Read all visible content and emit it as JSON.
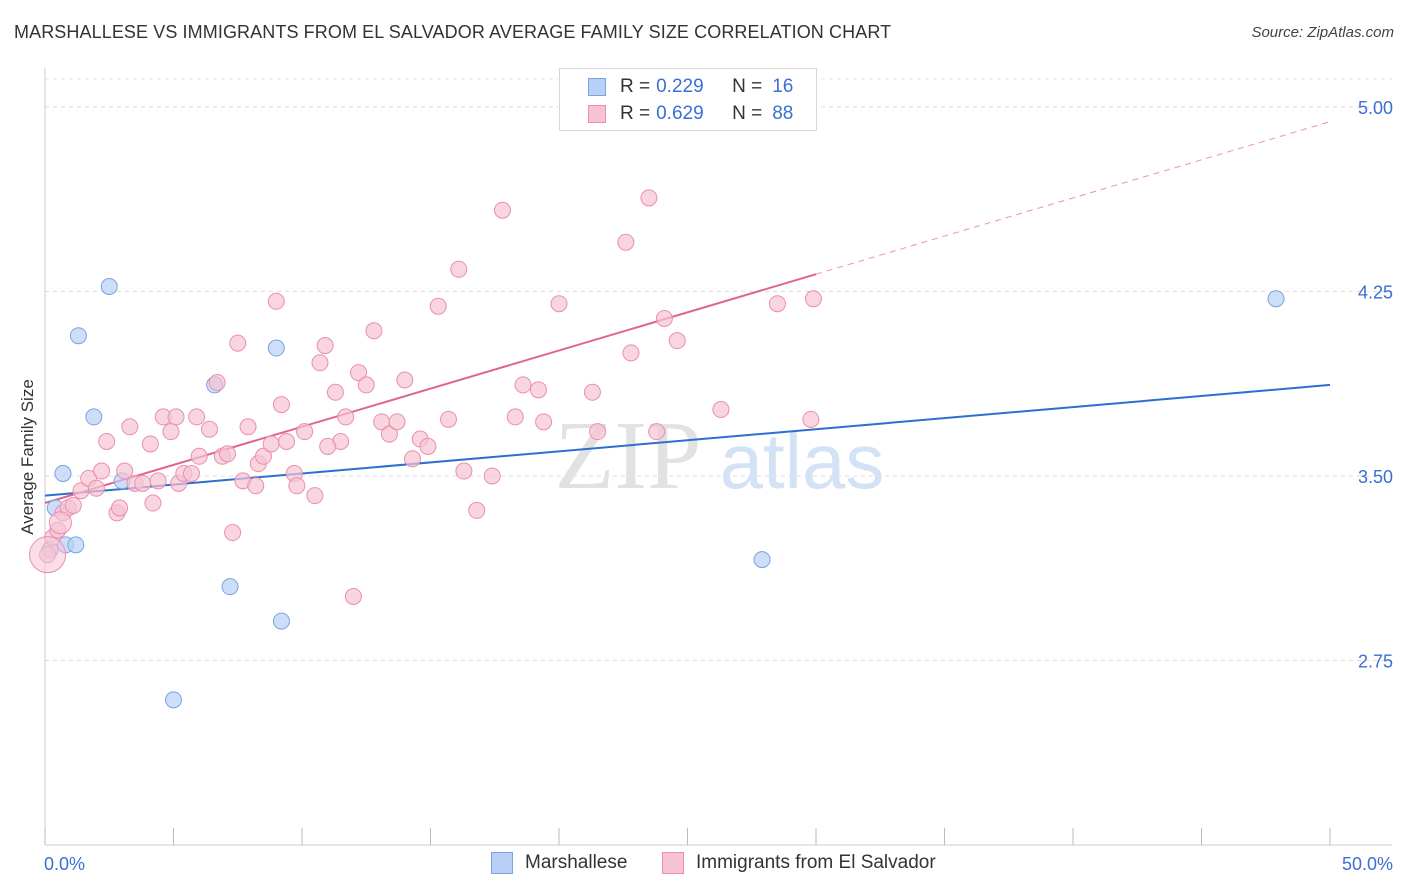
{
  "title": "MARSHALLESE VS IMMIGRANTS FROM EL SALVADOR AVERAGE FAMILY SIZE CORRELATION CHART",
  "source": "Source: ZipAtlas.com",
  "legend": {
    "rows": [
      {
        "label": "R =",
        "r": "0.229",
        "n_label": "N =",
        "n": "16"
      },
      {
        "label": "R =",
        "r": "0.629",
        "n_label": "N =",
        "n": "88"
      }
    ]
  },
  "bottom_legend": [
    "Marshallese",
    "Immigrants from El Salvador"
  ],
  "chart_data": {
    "type": "scatter",
    "title": "MARSHALLESE VS IMMIGRANTS FROM EL SALVADOR AVERAGE FAMILY SIZE CORRELATION CHART",
    "xlabel": "",
    "ylabel": "Average Family Size",
    "xlim": [
      0,
      50
    ],
    "ylim": [
      2.0,
      5.15
    ],
    "x_tick_labels": [
      "0.0%",
      "50.0%"
    ],
    "y_ticks": [
      2.75,
      3.5,
      4.25,
      5.0
    ],
    "y_tick_labels": [
      "2.75",
      "3.50",
      "4.25",
      "5.00"
    ],
    "grid": true,
    "watermark": "ZIPatlas",
    "colors": {
      "marshallese_fill": "#b8d0f5",
      "marshallese_edge": "#7aa3e0",
      "marshallese_line": "#2c6fcf",
      "salvador_fill": "#f7c3d3",
      "salvador_edge": "#ea8fac",
      "salvador_line": "#e0648d",
      "tick_label": "#3b6fd4"
    },
    "series": [
      {
        "name": "Marshallese",
        "r": 0.229,
        "n": 16,
        "trend": {
          "x0": 0,
          "y0": 3.42,
          "x1": 50,
          "y1": 3.87
        },
        "points": [
          [
            0.2,
            3.2
          ],
          [
            0.4,
            3.37
          ],
          [
            0.7,
            3.51
          ],
          [
            0.8,
            3.22
          ],
          [
            1.2,
            3.22
          ],
          [
            1.3,
            4.07
          ],
          [
            1.9,
            3.74
          ],
          [
            2.5,
            4.27
          ],
          [
            3.0,
            3.48
          ],
          [
            5.0,
            2.59
          ],
          [
            6.6,
            3.87
          ],
          [
            7.2,
            3.05
          ],
          [
            9.0,
            4.02
          ],
          [
            9.2,
            2.91
          ],
          [
            27.9,
            3.16
          ],
          [
            47.9,
            4.22
          ]
        ]
      },
      {
        "name": "Immigrants from El Salvador",
        "r": 0.629,
        "n": 88,
        "trend": {
          "x0": 0,
          "y0": 3.39,
          "x1": 30,
          "y1": 4.32,
          "dash_to_x": 50,
          "dash_to_y": 4.94
        },
        "points": [
          [
            0.1,
            3.18
          ],
          [
            0.3,
            3.25
          ],
          [
            0.5,
            3.28
          ],
          [
            0.7,
            3.35
          ],
          [
            0.9,
            3.37
          ],
          [
            1.1,
            3.38
          ],
          [
            1.4,
            3.44
          ],
          [
            1.7,
            3.49
          ],
          [
            2.0,
            3.45
          ],
          [
            2.2,
            3.52
          ],
          [
            2.4,
            3.64
          ],
          [
            2.8,
            3.35
          ],
          [
            2.9,
            3.37
          ],
          [
            3.1,
            3.52
          ],
          [
            3.3,
            3.7
          ],
          [
            3.5,
            3.47
          ],
          [
            3.8,
            3.47
          ],
          [
            4.1,
            3.63
          ],
          [
            4.2,
            3.39
          ],
          [
            4.4,
            3.48
          ],
          [
            4.6,
            3.74
          ],
          [
            4.9,
            3.68
          ],
          [
            5.1,
            3.74
          ],
          [
            5.2,
            3.47
          ],
          [
            5.4,
            3.51
          ],
          [
            5.7,
            3.51
          ],
          [
            5.9,
            3.74
          ],
          [
            6.0,
            3.58
          ],
          [
            6.4,
            3.69
          ],
          [
            6.7,
            3.88
          ],
          [
            6.9,
            3.58
          ],
          [
            7.1,
            3.59
          ],
          [
            7.3,
            3.27
          ],
          [
            7.5,
            4.04
          ],
          [
            7.7,
            3.48
          ],
          [
            7.9,
            3.7
          ],
          [
            8.2,
            3.46
          ],
          [
            8.3,
            3.55
          ],
          [
            8.5,
            3.58
          ],
          [
            8.8,
            3.63
          ],
          [
            9.0,
            4.21
          ],
          [
            9.2,
            3.79
          ],
          [
            9.4,
            3.64
          ],
          [
            9.7,
            3.51
          ],
          [
            9.8,
            3.46
          ],
          [
            10.1,
            3.68
          ],
          [
            10.5,
            3.42
          ],
          [
            10.7,
            3.96
          ],
          [
            10.9,
            4.03
          ],
          [
            11.3,
            3.84
          ],
          [
            11.5,
            3.64
          ],
          [
            11.7,
            3.74
          ],
          [
            12.0,
            3.01
          ],
          [
            12.2,
            3.92
          ],
          [
            12.5,
            3.87
          ],
          [
            12.8,
            4.09
          ],
          [
            13.1,
            3.72
          ],
          [
            13.4,
            3.67
          ],
          [
            13.7,
            3.72
          ],
          [
            14.0,
            3.89
          ],
          [
            14.3,
            3.57
          ],
          [
            14.6,
            3.65
          ],
          [
            14.9,
            3.62
          ],
          [
            15.3,
            4.19
          ],
          [
            15.7,
            3.73
          ],
          [
            16.1,
            4.34
          ],
          [
            16.3,
            3.52
          ],
          [
            16.8,
            3.36
          ],
          [
            17.4,
            3.5
          ],
          [
            17.8,
            4.58
          ],
          [
            18.3,
            3.74
          ],
          [
            18.6,
            3.87
          ],
          [
            19.2,
            3.85
          ],
          [
            19.4,
            3.72
          ],
          [
            20.0,
            4.2
          ],
          [
            21.3,
            3.84
          ],
          [
            22.6,
            4.45
          ],
          [
            22.8,
            4.0
          ],
          [
            23.5,
            4.63
          ],
          [
            23.8,
            3.68
          ],
          [
            24.1,
            4.14
          ],
          [
            24.6,
            4.05
          ],
          [
            26.3,
            3.77
          ],
          [
            29.9,
            4.22
          ],
          [
            29.8,
            3.73
          ],
          [
            28.5,
            4.2
          ],
          [
            11.0,
            3.62
          ],
          [
            21.5,
            3.68
          ]
        ]
      }
    ]
  }
}
